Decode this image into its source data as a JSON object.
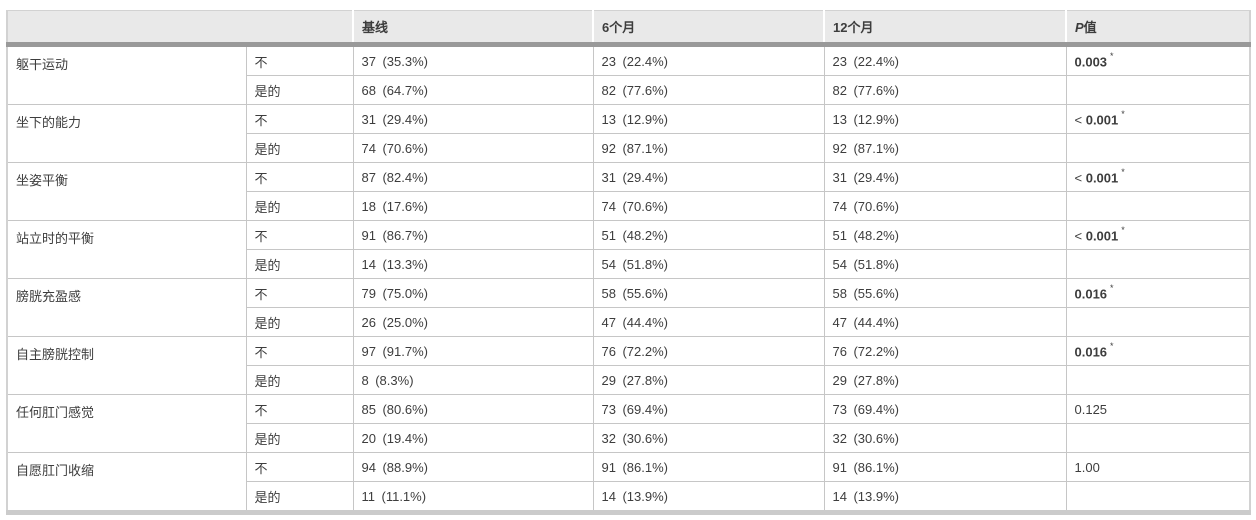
{
  "colors": {
    "header_bg": "#e9e9e9",
    "header_bar": "#999999",
    "cell_border": "#c6c6c6",
    "outer_border": "#d2d2d2",
    "text": "#3d3d3d"
  },
  "table": {
    "star_symbol": "*",
    "header": {
      "baseline": "基线",
      "six_months": "6个月",
      "twelve_months": "12个月",
      "p_italic": "P",
      "p_rest": "值"
    },
    "groups": [
      {
        "label": "躯干运动",
        "p": {
          "prefix": "",
          "value": "0.003",
          "bold": true,
          "star": true
        },
        "rows": [
          {
            "answer": "不",
            "baseline": "37 (35.3%)",
            "m6": "23 (22.4%)",
            "m12": "23 (22.4%)"
          },
          {
            "answer": "是的",
            "baseline": "68 (64.7%)",
            "m6": "82 (77.6%)",
            "m12": "82 (77.6%)"
          }
        ]
      },
      {
        "label": "坐下的能力",
        "p": {
          "prefix": "< ",
          "value": "0.001",
          "bold": true,
          "star": true
        },
        "rows": [
          {
            "answer": "不",
            "baseline": "31 (29.4%)",
            "m6": "13 (12.9%)",
            "m12": "13 (12.9%)"
          },
          {
            "answer": "是的",
            "baseline": "74 (70.6%)",
            "m6": "92 (87.1%)",
            "m12": "92 (87.1%)"
          }
        ]
      },
      {
        "label": "坐姿平衡",
        "p": {
          "prefix": "< ",
          "value": "0.001",
          "bold": true,
          "star": true
        },
        "rows": [
          {
            "answer": "不",
            "baseline": "87 (82.4%)",
            "m6": "31 (29.4%)",
            "m12": "31 (29.4%)"
          },
          {
            "answer": "是的",
            "baseline": "18 (17.6%)",
            "m6": "74 (70.6%)",
            "m12": "74 (70.6%)"
          }
        ]
      },
      {
        "label": "站立时的平衡",
        "p": {
          "prefix": "< ",
          "value": "0.001",
          "bold": true,
          "star": true
        },
        "rows": [
          {
            "answer": "不",
            "baseline": "91 (86.7%)",
            "m6": "51 (48.2%)",
            "m12": "51 (48.2%)"
          },
          {
            "answer": "是的",
            "baseline": "14 (13.3%)",
            "m6": "54 (51.8%)",
            "m12": "54 (51.8%)"
          }
        ]
      },
      {
        "label": "膀胱充盈感",
        "p": {
          "prefix": "",
          "value": "0.016",
          "bold": true,
          "star": true
        },
        "rows": [
          {
            "answer": "不",
            "baseline": "79 (75.0%)",
            "m6": "58 (55.6%)",
            "m12": "58 (55.6%)"
          },
          {
            "answer": "是的",
            "baseline": "26 (25.0%)",
            "m6": "47 (44.4%)",
            "m12": "47 (44.4%)"
          }
        ]
      },
      {
        "label": "自主膀胱控制",
        "p": {
          "prefix": "",
          "value": "0.016",
          "bold": true,
          "star": true
        },
        "rows": [
          {
            "answer": "不",
            "baseline": "97 (91.7%)",
            "m6": "76 (72.2%)",
            "m12": "76 (72.2%)"
          },
          {
            "answer": "是的",
            "baseline": "8 (8.3%)",
            "m6": "29 (27.8%)",
            "m12": "29 (27.8%)"
          }
        ]
      },
      {
        "label": "任何肛门感觉",
        "p": {
          "prefix": "",
          "value": "0.125",
          "bold": false,
          "star": false
        },
        "rows": [
          {
            "answer": "不",
            "baseline": "85 (80.6%)",
            "m6": "73 (69.4%)",
            "m12": "73 (69.4%)"
          },
          {
            "answer": "是的",
            "baseline": "20 (19.4%)",
            "m6": "32 (30.6%)",
            "m12": "32 (30.6%)"
          }
        ]
      },
      {
        "label": "自愿肛门收缩",
        "p": {
          "prefix": "",
          "value": "1.00",
          "bold": false,
          "star": false
        },
        "rows": [
          {
            "answer": "不",
            "baseline": "94 (88.9%)",
            "m6": "91 (86.1%)",
            "m12": "91 (86.1%)"
          },
          {
            "answer": "是的",
            "baseline": "11 (11.1%)",
            "m6": "14 (13.9%)",
            "m12": "14 (13.9%)"
          }
        ]
      }
    ]
  }
}
